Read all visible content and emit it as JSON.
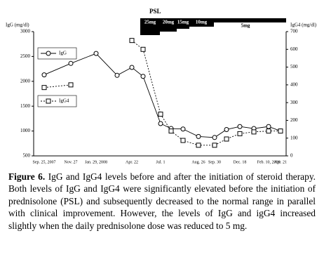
{
  "chart_data": {
    "type": "line",
    "y_label": "IgG (mg/dl)",
    "y2_label": "IgG4 (mg/dl)",
    "categories": [
      "Sep. 25, 2007",
      "Nov. 27",
      "Jan. 29, 2008",
      null,
      "Apr. 22",
      null,
      "Jul. 1",
      null,
      null,
      "Aug. 26",
      "Sep. 30",
      null,
      "Dec. 18",
      null,
      "Feb. 10, 2009",
      "Apr. 21"
    ],
    "series": [
      {
        "name": "IgG",
        "color": "#000000",
        "marker": "circle",
        "dashed": false,
        "values": [
          2130,
          2360,
          2560,
          2120,
          2280,
          2100,
          1150,
          1050,
          1040,
          890,
          870,
          1030,
          1090,
          1050,
          1090,
          1000
        ]
      },
      {
        "name": "IgG4",
        "color": "#000000",
        "marker": "square",
        "dashed": true,
        "axis": "y2",
        "values": [
          385,
          400,
          null,
          null,
          650,
          600,
          235,
          140,
          87,
          60,
          60,
          95,
          125,
          135,
          140,
          140
        ]
      }
    ],
    "ylim": [
      500,
      3000
    ],
    "yticks": [
      500,
      1000,
      1500,
      2000,
      2500,
      3000
    ],
    "y2lim": [
      0,
      700
    ],
    "y2ticks": [
      0,
      100,
      200,
      300,
      400,
      500,
      600,
      700
    ],
    "dose_title": "PSL",
    "doses": [
      "25mg",
      "20mg",
      "15mg",
      "10mg",
      "5mg"
    ]
  },
  "caption": {
    "label": "Figure 6.",
    "text": "IgG and IgG4 levels before and after the initiation of steroid therapy. Both levels of IgG and IgG4 were significantly elevated before the initiation of prednisolone (PSL) and subsequently decreased to the normal range in parallel with clinical improvement. However, the levels of IgG and igG4 increased slightly when the daily prednisolone dose was reduced to 5 mg."
  }
}
